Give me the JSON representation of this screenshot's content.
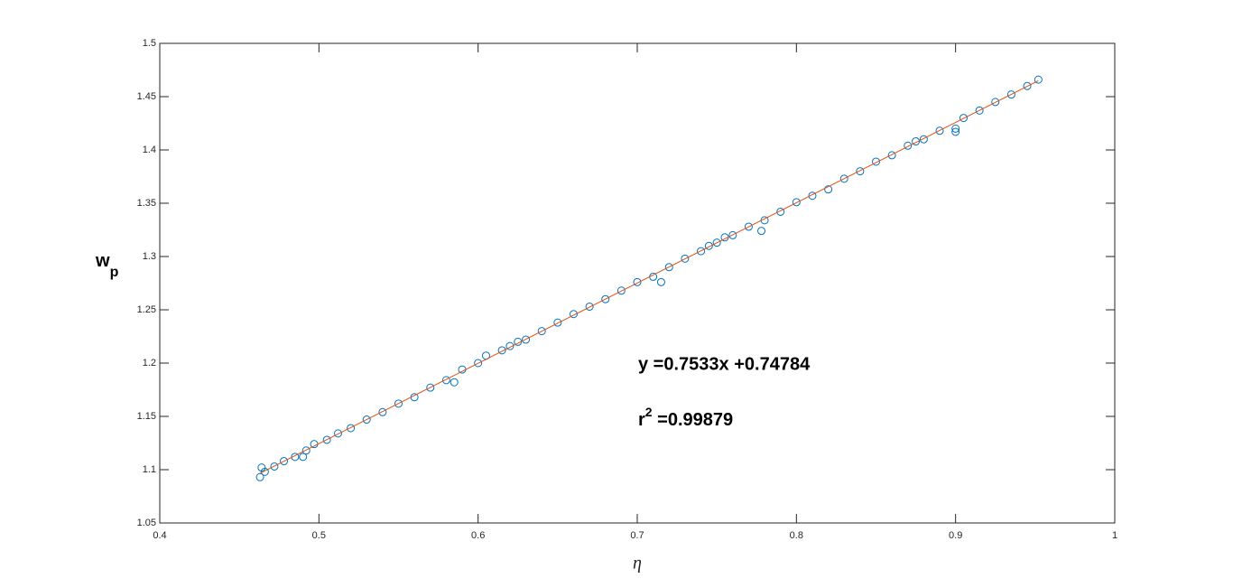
{
  "chart_data": {
    "type": "scatter",
    "xlabel": "η",
    "ylabel": {
      "base": "w",
      "subscript": "p"
    },
    "annotations": [
      {
        "text": "y =0.7533x +0.74784"
      },
      {
        "base": "r",
        "superscript": "2",
        "rest": " =0.99879"
      }
    ],
    "xlim": [
      0.4,
      1
    ],
    "xticks": [
      0.4,
      0.5,
      0.6,
      0.7,
      0.8,
      0.9,
      1
    ],
    "ylim": [
      1.05,
      1.5
    ],
    "yticks": [
      1.05,
      1.1,
      1.15,
      1.2,
      1.25,
      1.3,
      1.35,
      1.4,
      1.45,
      1.5
    ],
    "grid": false,
    "series": [
      {
        "type": "scatter",
        "color": "#0072bd",
        "x": [
          0.463,
          0.464,
          0.466,
          0.472,
          0.478,
          0.485,
          0.492,
          0.497,
          0.505,
          0.512,
          0.52,
          0.53,
          0.54,
          0.55,
          0.56,
          0.57,
          0.58,
          0.59,
          0.6,
          0.605,
          0.615,
          0.62,
          0.625,
          0.63,
          0.64,
          0.65,
          0.66,
          0.67,
          0.68,
          0.69,
          0.7,
          0.71,
          0.72,
          0.73,
          0.74,
          0.745,
          0.75,
          0.755,
          0.76,
          0.77,
          0.78,
          0.79,
          0.8,
          0.81,
          0.82,
          0.83,
          0.84,
          0.85,
          0.86,
          0.87,
          0.875,
          0.88,
          0.89,
          0.9,
          0.905,
          0.915,
          0.925,
          0.935,
          0.945,
          0.952,
          0.49,
          0.585,
          0.715,
          0.778,
          0.9
        ],
        "values": [
          1.093,
          1.102,
          1.098,
          1.103,
          1.108,
          1.112,
          1.118,
          1.124,
          1.128,
          1.134,
          1.139,
          1.147,
          1.154,
          1.162,
          1.168,
          1.177,
          1.184,
          1.194,
          1.2,
          1.207,
          1.212,
          1.216,
          1.22,
          1.222,
          1.23,
          1.238,
          1.246,
          1.253,
          1.26,
          1.268,
          1.276,
          1.281,
          1.29,
          1.298,
          1.305,
          1.31,
          1.313,
          1.318,
          1.32,
          1.328,
          1.334,
          1.342,
          1.351,
          1.357,
          1.363,
          1.373,
          1.38,
          1.389,
          1.395,
          1.404,
          1.408,
          1.41,
          1.418,
          1.42,
          1.43,
          1.437,
          1.445,
          1.452,
          1.46,
          1.466,
          1.112,
          1.182,
          1.276,
          1.324,
          1.417
        ]
      },
      {
        "type": "line",
        "color": "#d95319",
        "x": [
          0.4625,
          0.952
        ],
        "values": [
          1.0962,
          1.465
        ]
      }
    ]
  }
}
